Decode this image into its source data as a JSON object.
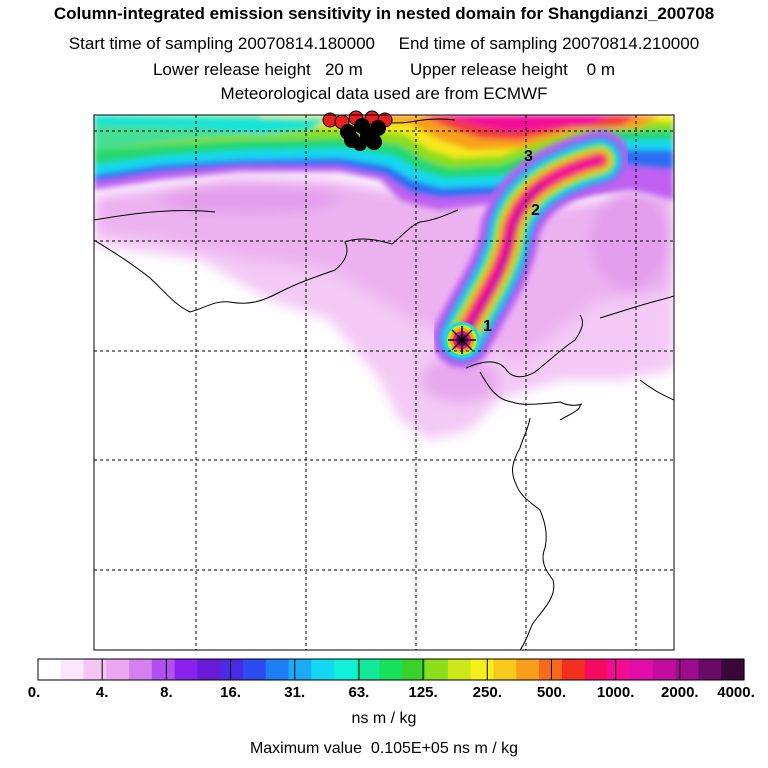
{
  "header": {
    "title": "Column-integrated emission sensitivity in nested domain for Shangdianzi_200708",
    "sampling_line": "Start time of sampling 20070814.180000     End time of sampling 20070814.210000",
    "release_line": "Lower release height   20 m          Upper release height    0 m",
    "met_line": "Meteorological data used are from ECMWF"
  },
  "chart_data": {
    "type": "heatmap",
    "title": "Column-integrated emission sensitivity in nested domain for Shangdianzi_200708",
    "colorbar": {
      "tick_labels": [
        "0.",
        "4.",
        "8.",
        "16.",
        "31.",
        "63.",
        "125.",
        "250.",
        "500.",
        "1000.",
        "2000.",
        "4000."
      ],
      "unit": "ns m / kg",
      "colors": [
        "#ffffff",
        "#fbe6fb",
        "#f4c6f4",
        "#eba8f0",
        "#d680ee",
        "#b24ff0",
        "#8a22ee",
        "#6a1bd8",
        "#4b2ae6",
        "#2c4cf2",
        "#1e7ef6",
        "#1aaaf6",
        "#12d8f2",
        "#12f0da",
        "#12e89a",
        "#18e05a",
        "#3ad22a",
        "#8cde1c",
        "#cce81a",
        "#f6f01a",
        "#f8c81a",
        "#f89e1c",
        "#f66a1e",
        "#f2301e",
        "#f40a5e",
        "#f20c94",
        "#e20ca8",
        "#c20ca0",
        "#9c0c8c",
        "#6a0a66",
        "#3a0838"
      ]
    },
    "markers": [
      {
        "label": "1"
      },
      {
        "label": "2"
      },
      {
        "label": "3"
      }
    ],
    "max_value_text": "Maximum value  0.105E+05 ns m / kg"
  }
}
